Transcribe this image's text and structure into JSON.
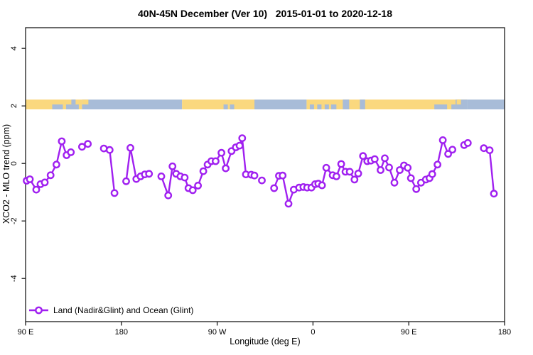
{
  "title": "40N-45N December (Ver 10)   2015-01-01 to 2020-12-18",
  "chart_data": {
    "type": "line",
    "title": "40N-45N December (Ver 10)   2015-01-01 to 2020-12-18",
    "xlabel": "Longitude (deg E)",
    "ylabel": "XCO2 - MLO trend (ppm)",
    "xlim": [
      90,
      540
    ],
    "ylim": [
      -5.5,
      4.72
    ],
    "grid": false,
    "frame_color": "#1a1a1a",
    "x_ticks": [
      {
        "value": 90,
        "label": "90 E"
      },
      {
        "value": 180,
        "label": "180"
      },
      {
        "value": 270,
        "label": "90 W"
      },
      {
        "value": 360,
        "label": "0"
      },
      {
        "value": 450,
        "label": "90 E"
      },
      {
        "value": 540,
        "label": "180"
      }
    ],
    "y_ticks": [
      {
        "value": 4,
        "label": "4"
      },
      {
        "value": 2,
        "label": "2"
      },
      {
        "value": 0,
        "label": "0"
      },
      {
        "value": -2,
        "label": "-2"
      },
      {
        "value": -4,
        "label": "-4"
      }
    ],
    "legend": {
      "position": "bottom-left",
      "label": "Land (Nadir&Glint) and Ocean (Glint)",
      "symbol": "line-with-open-circle"
    },
    "map_band": {
      "description": "land/ocean map strip for the 40N-45N latitude band",
      "value_top": 2.22,
      "value_bottom": 1.88,
      "land_color": "#FAD87E",
      "ocean_color": "#A8BCD8",
      "base_segments": [
        {
          "from": 90,
          "to": 143,
          "type": "land"
        },
        {
          "from": 143,
          "to": 237,
          "type": "ocean"
        },
        {
          "from": 237,
          "to": 305,
          "type": "land"
        },
        {
          "from": 305,
          "to": 354,
          "type": "ocean"
        },
        {
          "from": 354,
          "to": 505,
          "type": "land"
        },
        {
          "from": 505,
          "to": 540,
          "type": "ocean"
        }
      ],
      "overlay_specks": [
        {
          "from": 115,
          "to": 125,
          "type": "ocean",
          "half": "bottom"
        },
        {
          "from": 128,
          "to": 140,
          "type": "ocean",
          "half": "bottom"
        },
        {
          "from": 133,
          "to": 137,
          "type": "ocean",
          "half": "top"
        },
        {
          "from": 143,
          "to": 149,
          "type": "land",
          "half": "top"
        },
        {
          "from": 276,
          "to": 280,
          "type": "ocean",
          "half": "bottom"
        },
        {
          "from": 282,
          "to": 286,
          "type": "ocean",
          "half": "bottom"
        },
        {
          "from": 357,
          "to": 361,
          "type": "ocean",
          "half": "bottom"
        },
        {
          "from": 364,
          "to": 368,
          "type": "ocean",
          "half": "bottom"
        },
        {
          "from": 371,
          "to": 375,
          "type": "ocean",
          "half": "bottom"
        },
        {
          "from": 377,
          "to": 382,
          "type": "ocean",
          "half": "bottom"
        },
        {
          "from": 388,
          "to": 394,
          "type": "ocean",
          "half": "full"
        },
        {
          "from": 404,
          "to": 409,
          "type": "ocean",
          "half": "full"
        },
        {
          "from": 474,
          "to": 486,
          "type": "ocean",
          "half": "bottom"
        },
        {
          "from": 490,
          "to": 494,
          "type": "ocean",
          "half": "bottom"
        },
        {
          "from": 494,
          "to": 505,
          "type": "ocean",
          "half": "full"
        },
        {
          "from": 495,
          "to": 499,
          "type": "land",
          "half": "top"
        }
      ]
    },
    "series": [
      {
        "name": "Land (Nadir&Glint) and Ocean (Glint)",
        "color": "#A020F0",
        "marker": "open-circle",
        "segments": [
          [
            [
              91,
              -0.6
            ],
            [
              94,
              -0.55
            ],
            [
              100,
              -0.91
            ],
            [
              104,
              -0.72
            ],
            [
              108,
              -0.66
            ],
            [
              113.5,
              -0.41
            ],
            [
              119,
              -0.04
            ],
            [
              124,
              0.77
            ],
            [
              128.5,
              0.29
            ],
            [
              132.5,
              0.39
            ]
          ],
          [
            [
              143,
              0.58
            ],
            [
              148.5,
              0.68
            ]
          ],
          [
            [
              163.5,
              0.52
            ],
            [
              169,
              0.47
            ],
            [
              173.5,
              -1.03
            ]
          ],
          [
            [
              184.5,
              -0.62
            ],
            [
              188.5,
              0.54
            ],
            [
              194,
              -0.54
            ],
            [
              198,
              -0.45
            ],
            [
              202,
              -0.38
            ],
            [
              206,
              -0.36
            ]
          ],
          [
            [
              217.5,
              -0.45
            ],
            [
              224,
              -1.11
            ],
            [
              228,
              -0.1
            ],
            [
              231.5,
              -0.36
            ],
            [
              235.5,
              -0.45
            ],
            [
              239.5,
              -0.49
            ],
            [
              243,
              -0.86
            ],
            [
              247,
              -0.93
            ],
            [
              252,
              -0.77
            ],
            [
              257,
              -0.27
            ],
            [
              261,
              -0.04
            ],
            [
              264.5,
              0.08
            ],
            [
              268.5,
              0.08
            ],
            [
              274,
              0.37
            ],
            [
              278,
              -0.17
            ],
            [
              283.5,
              0.43
            ],
            [
              287.5,
              0.56
            ],
            [
              291,
              0.62
            ],
            [
              293.5,
              0.88
            ],
            [
              297,
              -0.38
            ],
            [
              302,
              -0.39
            ],
            [
              305,
              -0.42
            ]
          ],
          [
            [
              312,
              -0.59
            ]
          ],
          [
            [
              323.5,
              -0.86
            ],
            [
              328,
              -0.43
            ],
            [
              331.5,
              -0.42
            ],
            [
              337,
              -1.4
            ],
            [
              342,
              -0.91
            ],
            [
              347,
              -0.84
            ],
            [
              351,
              -0.82
            ],
            [
              354.5,
              -0.84
            ],
            [
              358.5,
              -0.84
            ],
            [
              362,
              -0.72
            ],
            [
              365,
              -0.7
            ],
            [
              368.5,
              -0.76
            ],
            [
              372.5,
              -0.15
            ],
            [
              378.5,
              -0.41
            ],
            [
              382,
              -0.45
            ],
            [
              386.5,
              -0.02
            ],
            [
              390.5,
              -0.29
            ],
            [
              394.5,
              -0.29
            ],
            [
              399,
              -0.56
            ],
            [
              402.5,
              -0.35
            ],
            [
              407,
              0.26
            ],
            [
              411,
              0.08
            ],
            [
              414.5,
              0.1
            ],
            [
              418,
              0.15
            ],
            [
              423.5,
              -0.23
            ],
            [
              427.5,
              0.18
            ],
            [
              431.5,
              -0.14
            ],
            [
              436.5,
              -0.67
            ],
            [
              441.5,
              -0.23
            ],
            [
              445.5,
              -0.07
            ],
            [
              449,
              -0.15
            ],
            [
              452,
              -0.51
            ],
            [
              457,
              -0.89
            ],
            [
              461.5,
              -0.67
            ],
            [
              466,
              -0.56
            ],
            [
              469.5,
              -0.51
            ],
            [
              472,
              -0.37
            ],
            [
              477,
              -0.04
            ],
            [
              482,
              0.81
            ],
            [
              487,
              0.33
            ],
            [
              491,
              0.48
            ]
          ],
          [
            [
              502,
              0.64
            ],
            [
              505.5,
              0.71
            ]
          ],
          [
            [
              520.5,
              0.53
            ],
            [
              526,
              0.46
            ],
            [
              530,
              -1.05
            ]
          ]
        ]
      }
    ]
  }
}
